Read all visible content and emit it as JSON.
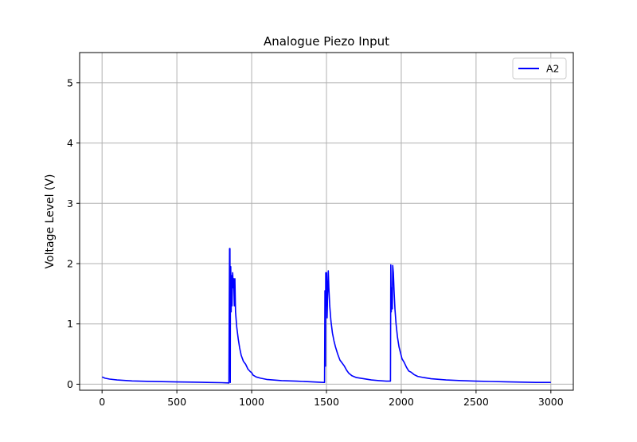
{
  "chart_data": {
    "type": "line",
    "title": "Analogue Piezo Input",
    "xlabel": "",
    "ylabel": "Voltage Level (V)",
    "xlim": [
      -150,
      3150
    ],
    "ylim": [
      -0.1,
      5.5
    ],
    "xticks": [
      0,
      500,
      1000,
      1500,
      2000,
      2500,
      3000
    ],
    "yticks": [
      0,
      1,
      2,
      3,
      4,
      5
    ],
    "xtick_labels": [
      "0",
      "500",
      "1000",
      "1500",
      "2000",
      "2500",
      "3000"
    ],
    "ytick_labels": [
      "0",
      "1",
      "2",
      "3",
      "4",
      "5"
    ],
    "grid": true,
    "legend_position": "top-right",
    "series": [
      {
        "name": "A2",
        "color": "#0000ff",
        "points": [
          [
            0,
            0.12
          ],
          [
            20,
            0.1
          ],
          [
            50,
            0.085
          ],
          [
            100,
            0.07
          ],
          [
            200,
            0.055
          ],
          [
            300,
            0.048
          ],
          [
            400,
            0.043
          ],
          [
            500,
            0.038
          ],
          [
            600,
            0.035
          ],
          [
            700,
            0.03
          ],
          [
            800,
            0.025
          ],
          [
            845,
            0.022
          ],
          [
            848,
            0.02
          ],
          [
            850,
            1.3
          ],
          [
            852,
            2.25
          ],
          [
            855,
            2.25
          ],
          [
            857,
            0.03
          ],
          [
            858,
            1.9
          ],
          [
            860,
            1.95
          ],
          [
            863,
            1.2
          ],
          [
            866,
            1.8
          ],
          [
            869,
            1.3
          ],
          [
            873,
            1.85
          ],
          [
            877,
            1.6
          ],
          [
            880,
            1.75
          ],
          [
            884,
            1.3
          ],
          [
            888,
            1.75
          ],
          [
            892,
            1.2
          ],
          [
            900,
            0.95
          ],
          [
            910,
            0.75
          ],
          [
            920,
            0.6
          ],
          [
            930,
            0.48
          ],
          [
            945,
            0.38
          ],
          [
            960,
            0.33
          ],
          [
            975,
            0.25
          ],
          [
            990,
            0.21
          ],
          [
            1000,
            0.19
          ],
          [
            1010,
            0.15
          ],
          [
            1030,
            0.12
          ],
          [
            1060,
            0.1
          ],
          [
            1100,
            0.08
          ],
          [
            1200,
            0.06
          ],
          [
            1300,
            0.05
          ],
          [
            1400,
            0.04
          ],
          [
            1480,
            0.03
          ],
          [
            1487,
            0.03
          ],
          [
            1490,
            1.55
          ],
          [
            1493,
            0.3
          ],
          [
            1495,
            1.85
          ],
          [
            1498,
            1.3
          ],
          [
            1501,
            1.85
          ],
          [
            1504,
            1.1
          ],
          [
            1508,
            1.5
          ],
          [
            1512,
            1.88
          ],
          [
            1516,
            1.6
          ],
          [
            1522,
            1.3
          ],
          [
            1530,
            1.05
          ],
          [
            1540,
            0.85
          ],
          [
            1550,
            0.72
          ],
          [
            1560,
            0.62
          ],
          [
            1575,
            0.5
          ],
          [
            1590,
            0.4
          ],
          [
            1605,
            0.35
          ],
          [
            1620,
            0.3
          ],
          [
            1635,
            0.23
          ],
          [
            1650,
            0.18
          ],
          [
            1670,
            0.14
          ],
          [
            1700,
            0.11
          ],
          [
            1750,
            0.09
          ],
          [
            1800,
            0.07
          ],
          [
            1850,
            0.06
          ],
          [
            1900,
            0.05
          ],
          [
            1925,
            0.05
          ],
          [
            1928,
            0.05
          ],
          [
            1930,
            1.98
          ],
          [
            1933,
            1.2
          ],
          [
            1936,
            1.6
          ],
          [
            1940,
            1.25
          ],
          [
            1943,
            1.97
          ],
          [
            1947,
            1.85
          ],
          [
            1952,
            1.55
          ],
          [
            1958,
            1.25
          ],
          [
            1965,
            1.0
          ],
          [
            1975,
            0.78
          ],
          [
            1985,
            0.62
          ],
          [
            1995,
            0.52
          ],
          [
            2005,
            0.42
          ],
          [
            2020,
            0.36
          ],
          [
            2035,
            0.28
          ],
          [
            2050,
            0.22
          ],
          [
            2065,
            0.2
          ],
          [
            2085,
            0.16
          ],
          [
            2110,
            0.13
          ],
          [
            2150,
            0.11
          ],
          [
            2200,
            0.09
          ],
          [
            2300,
            0.07
          ],
          [
            2400,
            0.06
          ],
          [
            2500,
            0.05
          ],
          [
            2600,
            0.045
          ],
          [
            2700,
            0.04
          ],
          [
            2800,
            0.035
          ],
          [
            2900,
            0.03
          ],
          [
            3000,
            0.03
          ]
        ]
      }
    ]
  }
}
